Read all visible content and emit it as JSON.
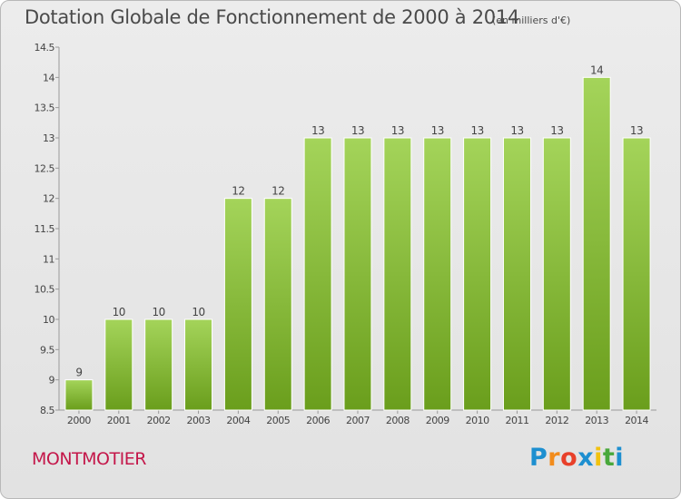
{
  "title": "Dotation Globale de Fonctionnement de 2000 à 2014",
  "subtitle": "(en milliers d'€)",
  "commune": "MONTMOTIER",
  "logo": {
    "text": "Proxiti",
    "colors": [
      "#1d8fd0",
      "#f28c1c",
      "#e8402a",
      "#1d8fd0",
      "#f2c20f",
      "#49a83b",
      "#1d8fd0"
    ]
  },
  "colors": {
    "bar_top": "#a4d45a",
    "bar_bottom": "#6a9e1c",
    "commune": "#c4174a",
    "text": "#4a4a4a"
  },
  "chart_data": {
    "type": "bar",
    "categories": [
      "2000",
      "2001",
      "2002",
      "2003",
      "2004",
      "2005",
      "2006",
      "2007",
      "2008",
      "2009",
      "2010",
      "2011",
      "2012",
      "2013",
      "2014"
    ],
    "values": [
      9,
      10,
      10,
      10,
      12,
      12,
      13,
      13,
      13,
      13,
      13,
      13,
      13,
      14,
      13
    ],
    "data_labels": [
      "9",
      "10",
      "10",
      "10",
      "12",
      "12",
      "13",
      "13",
      "13",
      "13",
      "13",
      "13",
      "13",
      "14",
      "13"
    ],
    "ylim": [
      8.5,
      14.5
    ],
    "yticks": [
      8.5,
      9,
      9.5,
      10,
      10.5,
      11,
      11.5,
      12,
      12.5,
      13,
      13.5,
      14,
      14.5
    ],
    "ytick_labels": [
      "8.5",
      "9",
      "9.5",
      "10",
      "10.5",
      "11",
      "11.5",
      "12",
      "12.5",
      "13",
      "13.5",
      "14",
      "14.5"
    ],
    "grid": false,
    "xlabel": "",
    "ylabel": ""
  }
}
